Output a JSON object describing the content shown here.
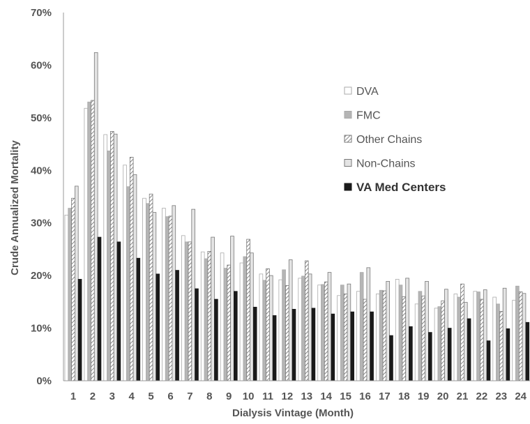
{
  "chart_data": {
    "type": "bar",
    "xlabel": "Dialysis Vintage (Month)",
    "ylabel": "Crude Annualized Mortality",
    "ylim": [
      0,
      70
    ],
    "y_ticks": [
      "0%",
      "10%",
      "20%",
      "30%",
      "40%",
      "50%",
      "60%",
      "70%"
    ],
    "categories": [
      "1",
      "2",
      "3",
      "4",
      "5",
      "6",
      "7",
      "8",
      "9",
      "10",
      "11",
      "12",
      "13",
      "14",
      "15",
      "16",
      "17",
      "18",
      "19",
      "20",
      "21",
      "22",
      "23",
      "24"
    ],
    "grid": false,
    "legend_position": "right",
    "series": [
      {
        "name": "DVA",
        "fill": "#ffffff",
        "stroke": "#aaaaaa",
        "pattern": "none",
        "values": [
          31.5,
          51.8,
          46.8,
          41.0,
          34.7,
          32.8,
          27.6,
          24.5,
          24.3,
          22.4,
          20.3,
          19.2,
          19.5,
          18.2,
          16.2,
          17.0,
          16.5,
          19.3,
          14.6,
          13.8,
          16.5,
          17.0,
          15.9,
          15.3
        ]
      },
      {
        "name": "FMC",
        "fill": "#b5b5b5",
        "stroke": "#aaaaaa",
        "pattern": "none",
        "values": [
          32.8,
          53.0,
          43.7,
          36.9,
          33.7,
          31.2,
          26.4,
          23.2,
          21.4,
          23.6,
          19.1,
          21.1,
          19.9,
          18.3,
          18.2,
          20.6,
          17.2,
          18.2,
          17.0,
          14.1,
          15.9,
          16.9,
          14.6,
          18.0
        ]
      },
      {
        "name": "Other Chains",
        "fill": "hatch",
        "stroke": "#777777",
        "pattern": "diagonal",
        "values": [
          34.7,
          53.3,
          47.4,
          42.5,
          35.5,
          31.3,
          26.4,
          24.6,
          22.0,
          26.9,
          21.3,
          18.1,
          22.8,
          18.8,
          16.5,
          15.5,
          17.1,
          16.0,
          16.1,
          15.2,
          18.4,
          15.5,
          13.2,
          16.9
        ]
      },
      {
        "name": "Non-Chains",
        "fill": "#e4e4e4",
        "stroke": "#777777",
        "pattern": "none",
        "values": [
          37.0,
          62.4,
          46.9,
          39.2,
          32.0,
          33.3,
          32.6,
          27.3,
          27.5,
          24.3,
          20.0,
          23.0,
          20.3,
          20.6,
          18.4,
          21.5,
          18.9,
          19.5,
          18.9,
          17.4,
          14.9,
          17.3,
          17.6,
          16.6
        ]
      },
      {
        "name": "VA Med Centers",
        "fill": "#1a1a1a",
        "stroke": "#1a1a1a",
        "pattern": "none",
        "bold": true,
        "values": [
          19.3,
          27.3,
          26.4,
          23.3,
          20.3,
          21.0,
          17.5,
          15.5,
          17.0,
          14.0,
          12.4,
          13.6,
          13.8,
          12.7,
          13.1,
          13.1,
          8.6,
          10.3,
          9.2,
          10.0,
          11.8,
          7.6,
          9.9,
          11.1
        ]
      }
    ]
  }
}
